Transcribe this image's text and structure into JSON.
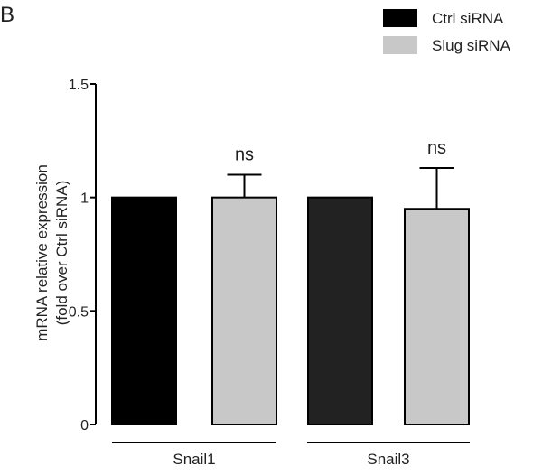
{
  "panel_label": "B",
  "chart_data": {
    "type": "bar",
    "title": "",
    "ylabel_line1": "mRNA relative expression",
    "ylabel_line2": "(fold over  Ctrl siRNA)",
    "ylim": [
      0,
      1.5
    ],
    "yticks": [
      {
        "value": 0,
        "label": "0"
      },
      {
        "value": 0.5,
        "label": "0.5"
      },
      {
        "value": 1,
        "label": "1"
      },
      {
        "value": 1.5,
        "label": "1.5"
      }
    ],
    "groups": [
      "Snail1",
      "Snail3"
    ],
    "legend": {
      "placement": "top-right",
      "entries": [
        {
          "name": "Ctrl siRNA",
          "color": "#000000"
        },
        {
          "name": "Slug siRNA",
          "color": "#c8c8c8"
        }
      ]
    },
    "bars": [
      {
        "group": "Snail1",
        "condition": "Ctrl siRNA",
        "value": 1.0,
        "error": 0,
        "color": "#000000",
        "annotation": ""
      },
      {
        "group": "Snail1",
        "condition": "Slug siRNA",
        "value": 1.0,
        "error": 0.1,
        "color": "#c8c8c8",
        "annotation": "ns"
      },
      {
        "group": "Snail3",
        "condition": "Ctrl siRNA",
        "value": 1.0,
        "error": 0,
        "color": "#222222",
        "annotation": ""
      },
      {
        "group": "Snail3",
        "condition": "Slug siRNA",
        "value": 0.95,
        "error": 0.18,
        "color": "#c8c8c8",
        "annotation": "ns"
      }
    ]
  }
}
